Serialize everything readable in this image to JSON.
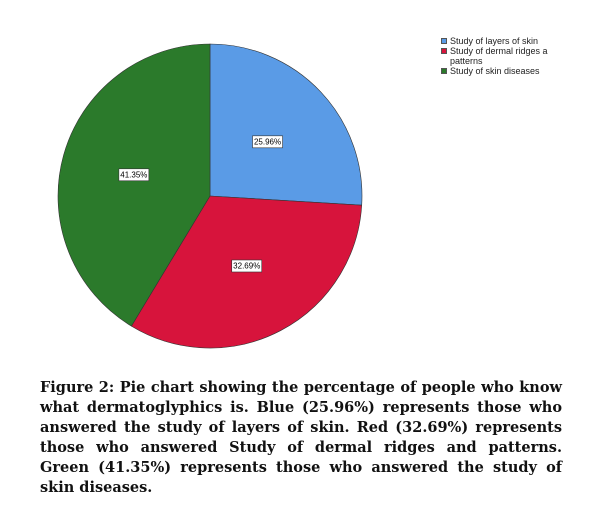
{
  "chart_data": {
    "type": "pie",
    "series": [
      {
        "name": "Study of layers of skin",
        "color": "#5a9be6"
      },
      {
        "name": "Study of dermal ridges a patterns",
        "color": "#d7143c"
      },
      {
        "name": "Study of skin diseases",
        "color": "#2b7a2b"
      }
    ],
    "values": [
      25.96,
      32.69,
      41.35
    ],
    "value_labels": [
      "25.96%",
      "32.69%",
      "41.35%"
    ],
    "caption": "Figure 2: Pie chart showing the percentage of people who know what dermatoglyphics is. Blue (25.96%) represents those who answered the study of layers of skin. Red (32.69%) represents those who answered Study of dermal ridges and patterns. Green (41.35%) represents those who answered the study of skin diseases."
  }
}
